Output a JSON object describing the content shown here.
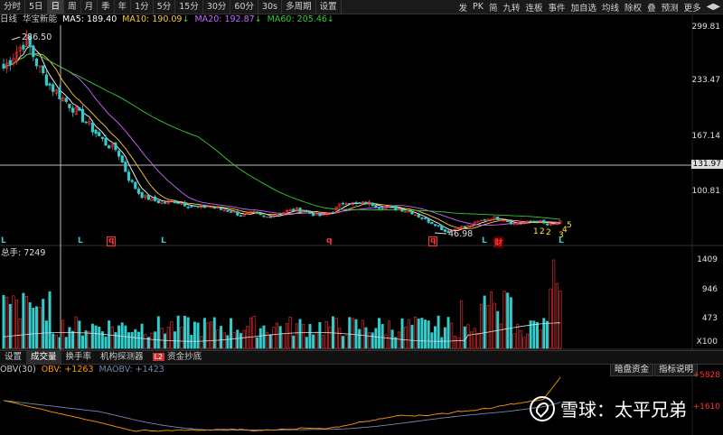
{
  "toolbar": {
    "left": [
      "分时",
      "5日",
      "日",
      "周",
      "月",
      "季",
      "年",
      "1分",
      "5分",
      "15分",
      "30分",
      "60分",
      "30s",
      "多周期",
      "设置"
    ],
    "active": "日",
    "right": [
      "发",
      "PK",
      "简",
      "九转",
      "连板",
      "事件",
      "加自选",
      "均线",
      "除权",
      "叠",
      "预测",
      "更多"
    ],
    "arrows": "◀▶"
  },
  "ma": {
    "period": "日线",
    "stock": "华宝新能",
    "ma5": "MA5: 189.40",
    "ma10": "MA10: 190.09",
    "ma20": "MA20: 192.87",
    "ma60": "MA60: 205.46",
    "ma10_arrow": "↓",
    "ma20_arrow": "↓",
    "ma60_arrow": "↓"
  },
  "price_axis": [
    "299.81",
    "233.47",
    "167.14",
    "131.97",
    "100.81"
  ],
  "high_label": "286.50",
  "low_label": "46.98",
  "marks": [
    "L",
    "L",
    "q",
    "L",
    "q",
    "q",
    "L",
    "财",
    "L"
  ],
  "wave_labels": [
    "1",
    "2",
    "2",
    "3",
    "4",
    "5"
  ],
  "volume": {
    "label": "总手: 7249",
    "axis": [
      "1409",
      "946",
      "473",
      "X100"
    ]
  },
  "tabs": [
    "设置",
    "成交量",
    "换手率",
    "机构探测器",
    "资金抄底"
  ],
  "tab_active": "成交量",
  "tab_badge": "L2",
  "obv": {
    "label": "OBV(30)",
    "obv": "OBV: +1263",
    "maobv": "MAOBV: +1423",
    "axis": [
      "+5828",
      "+1610"
    ],
    "buttons": [
      "暗盘资金",
      "指标说明"
    ]
  },
  "watermark": "雪球：太平兄弟",
  "colors": {
    "up": "#ff3333",
    "down": "#33cccc",
    "ma5": "#ffffff",
    "ma10": "#ffcc33",
    "ma20": "#cc66ff",
    "ma60": "#33cc33",
    "obv": "#ff9900",
    "maobv": "#7788aa"
  },
  "chart_data": {
    "type": "candlestick",
    "title": "华宝新能 日线",
    "price_range": [
      46.98,
      299.81
    ],
    "close_trend": [
      252,
      270,
      286.5,
      255,
      232,
      218,
      205,
      190,
      175,
      160,
      152,
      118,
      98,
      92,
      88,
      90,
      86,
      82,
      84,
      80,
      78,
      72,
      76,
      70,
      74,
      78,
      80,
      75,
      72,
      78,
      90,
      86,
      88,
      84,
      82,
      80,
      76,
      68,
      62,
      52,
      58,
      60,
      66,
      70,
      68,
      62,
      64,
      66,
      60,
      64
    ]
  }
}
